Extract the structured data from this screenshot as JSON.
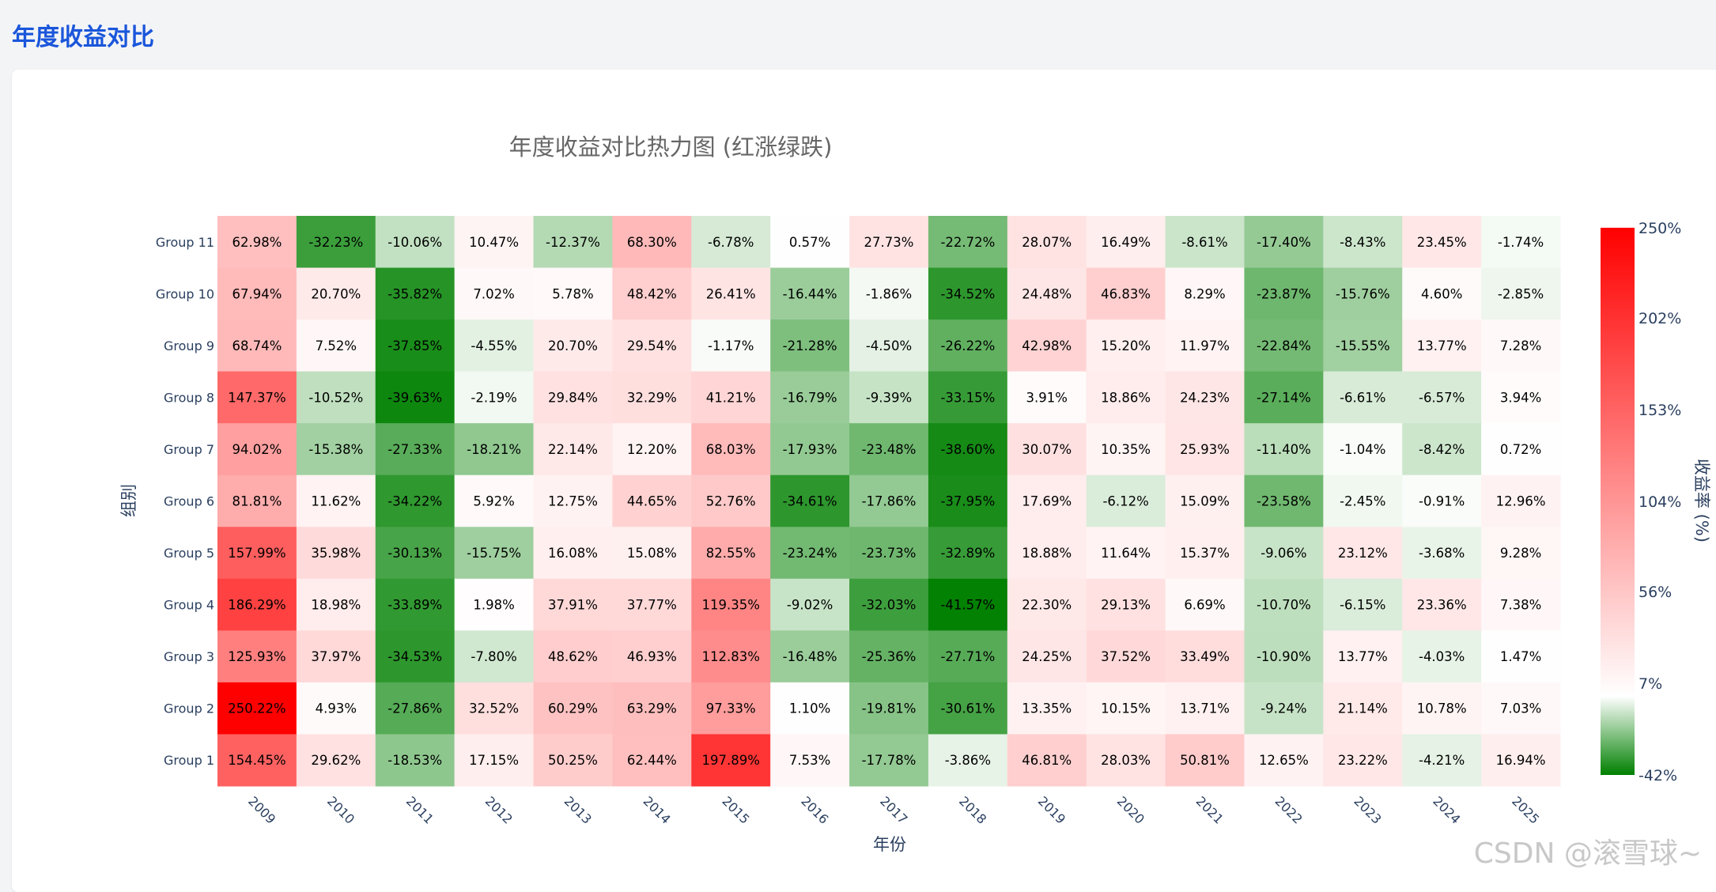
{
  "page": {
    "title": "年度收益对比"
  },
  "watermark": "CSDN @滚雪球~",
  "chart_data": {
    "type": "heatmap",
    "title": "年度收益对比热力图 (红涨绿跌)",
    "xlabel": "年份",
    "ylabel": "组别",
    "colorbar": {
      "title": "收益率 (%)",
      "min": -42,
      "max": 250,
      "ticks": [
        "250%",
        "202%",
        "153%",
        "104%",
        "56%",
        "7%",
        "-42%"
      ],
      "tick_values": [
        250,
        202,
        153,
        104,
        56,
        7,
        -42
      ],
      "colors": {
        "low": "#008000",
        "mid": "#ffffff",
        "high": "#ff0000"
      }
    },
    "x": [
      "2009",
      "2010",
      "2011",
      "2012",
      "2013",
      "2014",
      "2015",
      "2016",
      "2017",
      "2018",
      "2019",
      "2020",
      "2021",
      "2022",
      "2023",
      "2024",
      "2025"
    ],
    "y": [
      "Group 11",
      "Group 10",
      "Group 9",
      "Group 8",
      "Group 7",
      "Group 6",
      "Group 5",
      "Group 4",
      "Group 3",
      "Group 2",
      "Group 1"
    ],
    "values": [
      [
        62.98,
        -32.23,
        -10.06,
        10.47,
        -12.37,
        68.3,
        -6.78,
        0.57,
        27.73,
        -22.72,
        28.07,
        16.49,
        -8.61,
        -17.4,
        -8.43,
        23.45,
        -1.74
      ],
      [
        67.94,
        20.7,
        -35.82,
        7.02,
        5.78,
        48.42,
        26.41,
        -16.44,
        -1.86,
        -34.52,
        24.48,
        46.83,
        8.29,
        -23.87,
        -15.76,
        4.6,
        -2.85
      ],
      [
        68.74,
        7.52,
        -37.85,
        -4.55,
        20.7,
        29.54,
        -1.17,
        -21.28,
        -4.5,
        -26.22,
        42.98,
        15.2,
        11.97,
        -22.84,
        -15.55,
        13.77,
        7.28
      ],
      [
        147.37,
        -10.52,
        -39.63,
        -2.19,
        29.84,
        32.29,
        41.21,
        -16.79,
        -9.39,
        -33.15,
        3.91,
        18.86,
        24.23,
        -27.14,
        -6.61,
        -6.57,
        3.94
      ],
      [
        94.02,
        -15.38,
        -27.33,
        -18.21,
        22.14,
        12.2,
        68.03,
        -17.93,
        -23.48,
        -38.6,
        30.07,
        10.35,
        25.93,
        -11.4,
        -1.04,
        -8.42,
        0.72
      ],
      [
        81.81,
        11.62,
        -34.22,
        5.92,
        12.75,
        44.65,
        52.76,
        -34.61,
        -17.86,
        -37.95,
        17.69,
        -6.12,
        15.09,
        -23.58,
        -2.45,
        -0.91,
        12.96
      ],
      [
        157.99,
        35.98,
        -30.13,
        -15.75,
        16.08,
        15.08,
        82.55,
        -23.24,
        -23.73,
        -32.89,
        18.88,
        11.64,
        15.37,
        -9.06,
        23.12,
        -3.68,
        9.28
      ],
      [
        186.29,
        18.98,
        -33.89,
        1.98,
        37.91,
        37.77,
        119.35,
        -9.02,
        -32.03,
        -41.57,
        22.3,
        29.13,
        6.69,
        -10.7,
        -6.15,
        23.36,
        7.38
      ],
      [
        125.93,
        37.97,
        -34.53,
        -7.8,
        48.62,
        46.93,
        112.83,
        -16.48,
        -25.36,
        -27.71,
        24.25,
        37.52,
        33.49,
        -10.9,
        13.77,
        -4.03,
        1.47
      ],
      [
        250.22,
        4.93,
        -27.86,
        32.52,
        60.29,
        63.29,
        97.33,
        1.1,
        -19.81,
        -30.61,
        13.35,
        10.15,
        13.71,
        -9.24,
        21.14,
        10.78,
        7.03
      ],
      [
        154.45,
        29.62,
        -18.53,
        17.15,
        50.25,
        62.44,
        197.89,
        7.53,
        -17.78,
        -3.86,
        46.81,
        28.03,
        50.81,
        12.65,
        23.22,
        -4.21,
        16.94
      ]
    ]
  }
}
